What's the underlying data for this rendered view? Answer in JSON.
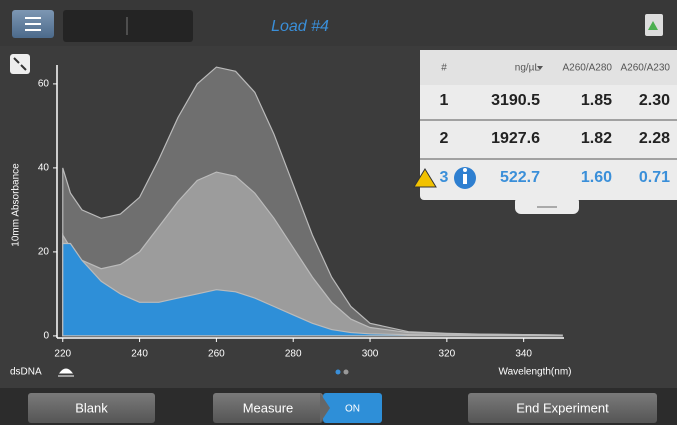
{
  "header": {
    "title": "Load #4"
  },
  "sample_type": "dsDNA",
  "table": {
    "columns": [
      "#",
      "ng/µL",
      "A260/A280",
      "A260/A230"
    ],
    "rows": [
      [
        "1",
        "3190.5",
        "1.85",
        "2.30"
      ],
      [
        "2",
        "1927.6",
        "1.82",
        "2.28"
      ],
      [
        "3",
        "522.7",
        "1.60",
        "0.71"
      ]
    ]
  },
  "footer": {
    "buttons": [
      "Blank",
      "Measure",
      "ON",
      "End Experiment"
    ]
  },
  "chart_data": {
    "type": "area",
    "x_label": "Wavelength(nm)",
    "y_label": "10mm Absorbance",
    "x": [
      220,
      222,
      225,
      230,
      235,
      240,
      245,
      250,
      255,
      260,
      265,
      270,
      275,
      280,
      285,
      290,
      295,
      300,
      310,
      320,
      330,
      340,
      350
    ],
    "series": [
      {
        "color": "#6f6f6f",
        "values": [
          40,
          34,
          30,
          28,
          29,
          33,
          42,
          52,
          60,
          64,
          63,
          58,
          48,
          36,
          24,
          14,
          7,
          3,
          1,
          0.6,
          0.4,
          0.3,
          0.2
        ]
      },
      {
        "color": "#9c9c9c",
        "values": [
          24,
          21,
          18,
          16,
          17,
          20,
          26,
          32,
          37,
          39,
          38,
          34,
          28,
          21,
          14,
          8,
          4,
          2,
          0.8,
          0.5,
          0.4,
          0.3,
          0.2
        ]
      },
      {
        "color": "#2e8fd8",
        "values": [
          22,
          22,
          18,
          13,
          10,
          8,
          8,
          9,
          10,
          11,
          10.5,
          9,
          7,
          5,
          3,
          1.5,
          0.8,
          0.5,
          0.3,
          0.2,
          0.2,
          0.2,
          0.2
        ]
      }
    ],
    "xlim": [
      218.5,
      350.5
    ],
    "ylim": [
      -0.5,
      64.5
    ],
    "xticks": [
      220,
      240,
      260,
      280,
      300,
      320,
      340
    ],
    "yticks": [
      0,
      20,
      40,
      60
    ]
  }
}
